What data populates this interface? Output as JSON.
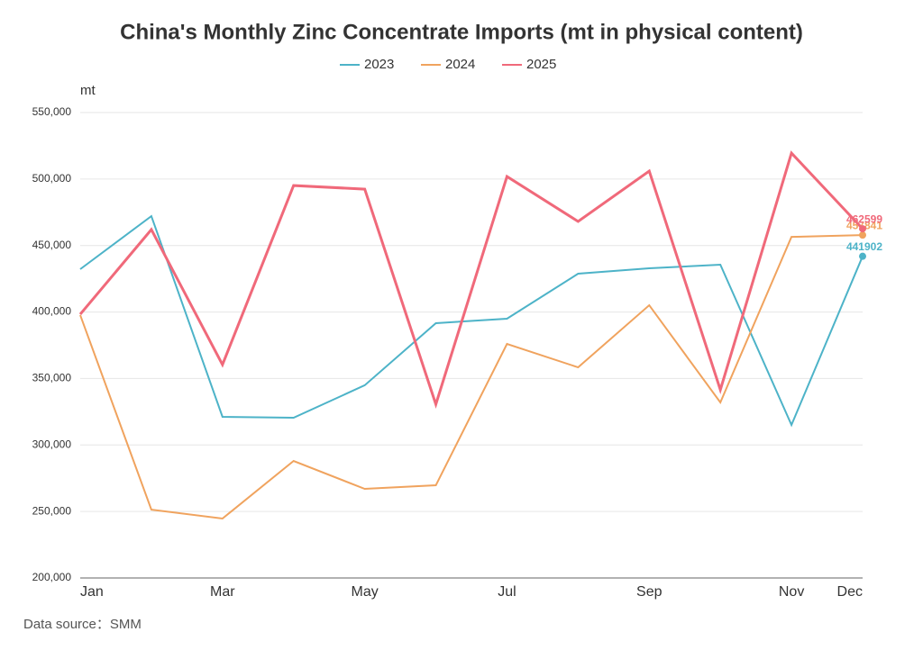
{
  "chart_data": {
    "type": "line",
    "title": "China's Monthly Zinc Concentrate Imports (mt in physical content)",
    "y_label": "mt",
    "source": "Data source：SMM",
    "categories": [
      "Jan",
      null,
      "Mar",
      null,
      "May",
      null,
      "Jul",
      null,
      "Sep",
      null,
      "Nov",
      "Dec"
    ],
    "series": [
      {
        "name": "2023",
        "color": "#4db3c8",
        "values": [
          432200,
          472100,
          321200,
          320500,
          344900,
          391600,
          395000,
          428800,
          432900,
          435600,
          315100,
          441902
        ]
      },
      {
        "name": "2024",
        "color": "#f0a35e",
        "values": [
          397700,
          251400,
          244700,
          288000,
          267000,
          269700,
          376000,
          358400,
          405100,
          332000,
          456500,
          457841
        ]
      },
      {
        "name": "2025",
        "color": "#f0697a",
        "values": [
          398300,
          462000,
          360400,
          495100,
          492400,
          330600,
          501900,
          468100,
          506000,
          341500,
          519500,
          462599
        ]
      }
    ],
    "ylim": [
      200000,
      550000
    ],
    "yticks": [
      {
        "value": 200000,
        "label": "200,000"
      },
      {
        "value": 250000,
        "label": "250,000"
      },
      {
        "value": 300000,
        "label": "300,000"
      },
      {
        "value": 350000,
        "label": "350,000"
      },
      {
        "value": 400000,
        "label": "400,000"
      },
      {
        "value": 450000,
        "label": "450,000"
      },
      {
        "value": 500000,
        "label": "500,000"
      },
      {
        "value": 550000,
        "label": "550,000"
      }
    ],
    "grid": true,
    "legend": "top"
  }
}
